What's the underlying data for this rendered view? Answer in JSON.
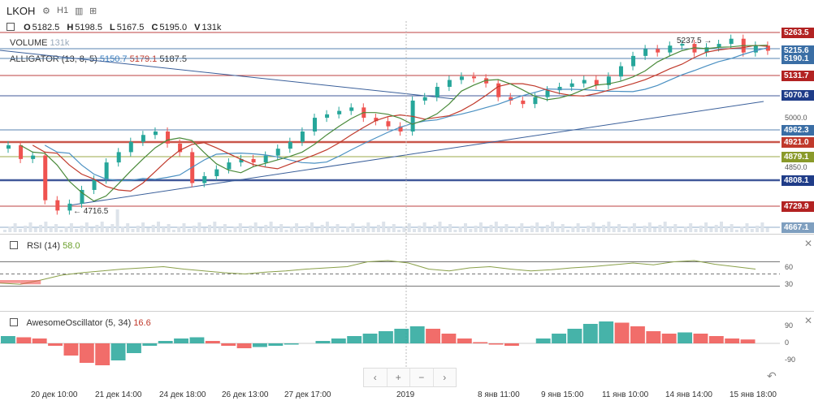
{
  "header": {
    "symbol": "LKOH",
    "timeframe": "H1"
  },
  "ohlc": {
    "o_label": "O",
    "o": "5182.5",
    "h_label": "H",
    "h": "5198.5",
    "l_label": "L",
    "l": "5167.5",
    "c_label": "C",
    "c": "5195.0",
    "v_label": "V",
    "v": "131k"
  },
  "indicators": {
    "volume_name": "VOLUME",
    "volume_value": "131k",
    "alligator_name": "ALLIGATOR (13, 8, 5)",
    "alligator_v1": "5150.7",
    "alligator_v2": "5179.1",
    "alligator_v3": "5187.5",
    "rsi_name": "RSI (14)",
    "rsi_value": "58.0",
    "ao_name": "AwesomeOscillator (5, 34)",
    "ao_value": "16.6"
  },
  "price_tags": [
    {
      "label": "5263.5",
      "color": "#b22222"
    },
    {
      "label": "5215.6",
      "color": "#3a6ea5"
    },
    {
      "label": "5190.1",
      "color": "#3a6ea5"
    },
    {
      "label": "5131.7",
      "color": "#b22222"
    },
    {
      "label": "5070.6",
      "color": "#1f3c88"
    },
    {
      "label": "4962.3",
      "color": "#3a6ea5"
    },
    {
      "label": "4921.0",
      "color": "#c0392b"
    },
    {
      "label": "4879.1",
      "color": "#8a9a2a"
    },
    {
      "label": "4808.1",
      "color": "#1f3c88"
    },
    {
      "label": "4729.9",
      "color": "#b22222"
    },
    {
      "label": "4667.1",
      "color": "#7f9fbf"
    }
  ],
  "price_axis": [
    "5000.0",
    "4850.0"
  ],
  "annotations": {
    "high": "5237.5 →",
    "low": "← 4716.5"
  },
  "rsi_axis": [
    "60",
    "30"
  ],
  "ao_axis": [
    "90",
    "0",
    "-90"
  ],
  "x_axis": [
    "20 дек 10:00",
    "21 дек 14:00",
    "24 дек 18:00",
    "26 дек 13:00",
    "27 дек 17:00",
    "2019",
    "8 янв 11:00",
    "9 янв 15:00",
    "11 янв 10:00",
    "14 янв 14:00",
    "15 янв 18:00"
  ],
  "zoom": {
    "left": "‹",
    "plus": "+",
    "minus": "−",
    "right": "›"
  },
  "scroll_back": "↶",
  "colors": {
    "up": "#26a69a",
    "down": "#ef5350",
    "jaw": "#4a90c2",
    "teeth": "#c0392b",
    "lips": "#4a8a3a"
  },
  "chart_data": {
    "type": "candlestick",
    "ylim": [
      4667.1,
      5281.3
    ],
    "close_series": [
      4920,
      4880,
      4890,
      4760,
      4730,
      4750,
      4790,
      4820,
      4870,
      4900,
      4930,
      4950,
      4960,
      4925,
      4900,
      4810,
      4830,
      4850,
      4870,
      4880,
      4870,
      4890,
      4910,
      4930,
      4960,
      5000,
      5010,
      5020,
      5030,
      5000,
      4990,
      4975,
      4960,
      5050,
      5060,
      5090,
      5110,
      5120,
      5115,
      5100,
      5060,
      5050,
      5040,
      5060,
      5080,
      5090,
      5100,
      5110,
      5095,
      5120,
      5150,
      5180,
      5200,
      5190,
      5210,
      5215,
      5190,
      5205,
      5215,
      5230,
      5190,
      5210,
      5195
    ],
    "rsi_values": [
      35,
      33,
      40,
      48,
      52,
      55,
      58,
      60,
      62,
      58,
      55,
      52,
      50,
      53,
      55,
      58,
      60,
      62,
      70,
      72,
      68,
      58,
      55,
      60,
      62,
      58,
      55,
      57,
      60,
      62,
      65,
      68,
      65,
      70,
      72,
      66,
      62,
      58
    ],
    "ao_values": [
      30,
      25,
      20,
      -10,
      -50,
      -80,
      -90,
      -70,
      -40,
      -10,
      10,
      20,
      25,
      10,
      -10,
      -20,
      -15,
      -10,
      -5,
      0,
      10,
      20,
      30,
      40,
      50,
      60,
      70,
      60,
      40,
      20,
      5,
      -5,
      -10,
      0,
      20,
      40,
      60,
      80,
      90,
      85,
      70,
      50,
      40,
      45,
      40,
      30,
      20,
      16
    ]
  }
}
